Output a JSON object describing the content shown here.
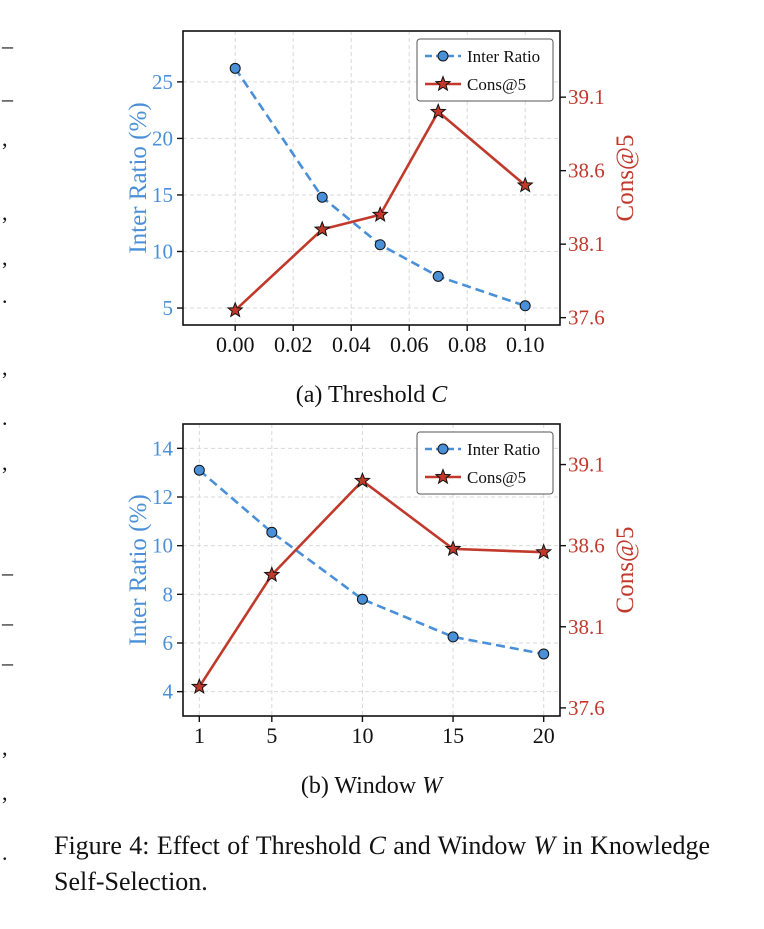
{
  "colors": {
    "blue": "#4a90d9",
    "red": "#c0392b",
    "grid": "#d9d9d9",
    "axis": "#111111"
  },
  "chart_data": [
    {
      "type": "line",
      "subtitle_prefix": "(a) Threshold ",
      "subtitle_var": "C",
      "x": [
        0.0,
        0.03,
        0.05,
        0.07,
        0.1
      ],
      "xticks": [
        "0.00",
        "0.02",
        "0.04",
        "0.06",
        "0.08",
        "0.10"
      ],
      "xtick_values": [
        0.0,
        0.02,
        0.04,
        0.06,
        0.08,
        0.1
      ],
      "xlim": [
        -0.018,
        0.112
      ],
      "ylabel_left": "Inter Ratio (%)",
      "ylabel_right": "Cons@5",
      "ylim_left": [
        3.5,
        29.5
      ],
      "yticks_left": [
        "5",
        "10",
        "15",
        "20",
        "25"
      ],
      "ytick_values_left": [
        5,
        10,
        15,
        20,
        25
      ],
      "ylim_right": [
        37.55,
        39.55
      ],
      "yticks_right": [
        "37.6",
        "38.1",
        "38.6",
        "39.1"
      ],
      "ytick_values_right": [
        37.6,
        38.1,
        38.6,
        39.1
      ],
      "series": [
        {
          "name": "Inter Ratio",
          "axis": "left",
          "style": "dashed-circle",
          "values": [
            26.2,
            14.8,
            10.6,
            7.8,
            5.2
          ]
        },
        {
          "name": "Cons@5",
          "axis": "right",
          "style": "solid-star",
          "values": [
            37.65,
            38.2,
            38.3,
            39.0,
            38.5
          ]
        }
      ],
      "legend": [
        "Inter Ratio",
        "Cons@5"
      ],
      "legend_position": "top-right",
      "grid": true
    },
    {
      "type": "line",
      "subtitle_prefix": "(b) Window ",
      "subtitle_var": "W",
      "x": [
        1,
        5,
        10,
        15,
        20
      ],
      "xticks": [
        "1",
        "5",
        "10",
        "15",
        "20"
      ],
      "xtick_values": [
        1,
        5,
        10,
        15,
        20
      ],
      "xlim": [
        0.1,
        20.9
      ],
      "ylabel_left": "Inter Ratio (%)",
      "ylabel_right": "Cons@5",
      "ylim_left": [
        3.0,
        15.0
      ],
      "yticks_left": [
        "4",
        "6",
        "8",
        "10",
        "12",
        "14"
      ],
      "ytick_values_left": [
        4,
        6,
        8,
        10,
        12,
        14
      ],
      "ylim_right": [
        37.55,
        39.35
      ],
      "yticks_right": [
        "37.6",
        "38.1",
        "38.6",
        "39.1"
      ],
      "ytick_values_right": [
        37.6,
        38.1,
        38.6,
        39.1
      ],
      "series": [
        {
          "name": "Inter Ratio",
          "axis": "left",
          "style": "dashed-circle",
          "values": [
            13.1,
            10.55,
            7.8,
            6.25,
            5.55
          ]
        },
        {
          "name": "Cons@5",
          "axis": "right",
          "style": "solid-star",
          "values": [
            37.73,
            38.42,
            39.0,
            38.58,
            38.56
          ]
        }
      ],
      "legend": [
        "Inter Ratio",
        "Cons@5"
      ],
      "legend_position": "top-right",
      "grid": true
    }
  ],
  "caption": {
    "part1": "Figure 4:  Effect of Threshold ",
    "var1": "C",
    "part2": " and Window ",
    "var2": "W",
    "part3": " in Knowledge Self-Selection."
  },
  "margin_marks": [
    "–",
    "–",
    ",",
    ",",
    ",",
    ".",
    ",",
    ".",
    ",",
    "–",
    "–",
    "–",
    ",",
    ",",
    "."
  ]
}
